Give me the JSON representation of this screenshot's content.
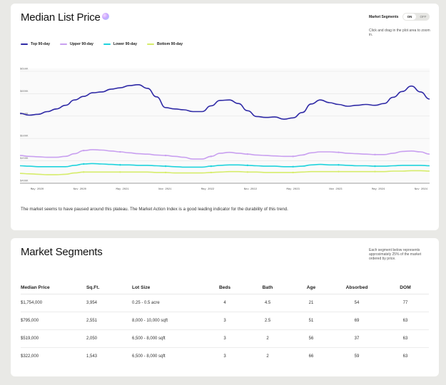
{
  "price": {
    "title": "Median List Price",
    "segments_label": "Market Segments",
    "toggle_on": "ON",
    "toggle_off": "OFF",
    "hint": "Click and drag in the plot area to zoom in.",
    "legend": [
      {
        "label": "Top 90-day",
        "color": "#2f2aa6"
      },
      {
        "label": "Upper 90-day",
        "color": "#c9a0f0"
      },
      {
        "label": "Lower 90-day",
        "color": "#1fd3dd"
      },
      {
        "label": "Bottom 90-day",
        "color": "#d6ec6a"
      }
    ],
    "note": "The market seems to have paused around this plateau. The Market Action Index is a good leading indicator for the durability of this trend."
  },
  "chart_data": {
    "type": "line",
    "ylim": [
      400,
      650
    ],
    "y_ticks": [
      "$650K",
      "$600K",
      "$550K",
      "$500K",
      "$450K",
      "$400K"
    ],
    "x_ticks": [
      "May 2020",
      "Nov 2020",
      "May 2021",
      "Nov 2021",
      "May 2022",
      "Nov 2022",
      "May 2023",
      "Nov 2023",
      "May 2024",
      "Nov 2024"
    ],
    "grid": true,
    "series": [
      {
        "name": "Top 90-day",
        "color": "#2f2aa6",
        "values": [
          556,
          552,
          554,
          560,
          566,
          574,
          586,
          594,
          602,
          604,
          610,
          613,
          618,
          620,
          612,
          593,
          569,
          566,
          564,
          560,
          560,
          573,
          585,
          586,
          578,
          562,
          549,
          547,
          548,
          543,
          546,
          558,
          577,
          586,
          580,
          576,
          572,
          574,
          576,
          574,
          578,
          592,
          605,
          617,
          604,
          588
        ]
      },
      {
        "name": "Upper 90-day",
        "color": "#c9a0f0",
        "values": [
          462,
          460,
          459,
          458,
          458,
          460,
          466,
          473,
          475,
          474,
          472,
          470,
          468,
          466,
          465,
          463,
          462,
          460,
          458,
          454,
          454,
          460,
          467,
          469,
          467,
          465,
          463,
          462,
          461,
          460,
          460,
          463,
          468,
          470,
          470,
          469,
          467,
          466,
          465,
          464,
          464,
          467,
          471,
          472,
          470,
          465
        ]
      },
      {
        "name": "Lower 90-day",
        "color": "#1fd3dd",
        "values": [
          439,
          438,
          437,
          437,
          437,
          437,
          440,
          443,
          444,
          443,
          442,
          441,
          441,
          440,
          440,
          439,
          438,
          437,
          436,
          436,
          436,
          438,
          440,
          441,
          441,
          440,
          439,
          438,
          438,
          437,
          437,
          438,
          441,
          442,
          441,
          441,
          440,
          439,
          439,
          438,
          438,
          439,
          440,
          440,
          440,
          439
        ]
      },
      {
        "name": "Bottom 90-day",
        "color": "#d6ec6a",
        "values": [
          422,
          421,
          420,
          419,
          419,
          420,
          423,
          425,
          425,
          425,
          425,
          425,
          425,
          425,
          425,
          424,
          424,
          423,
          423,
          423,
          423,
          424,
          425,
          426,
          426,
          425,
          425,
          424,
          424,
          424,
          424,
          425,
          426,
          426,
          426,
          426,
          426,
          426,
          426,
          426,
          426,
          427,
          427,
          428,
          428,
          427
        ]
      }
    ]
  },
  "segments": {
    "title": "Market Segments",
    "note": "Each segment below represents approximately 25% of the market ordered by price.",
    "columns": [
      "Median Price",
      "Sq.Ft.",
      "Lot Size",
      "Beds",
      "Bath",
      "Age",
      "Absorbed",
      "DOM"
    ],
    "rows": [
      [
        "$1,754,000",
        "3,954",
        "0.25 - 0.5 acre",
        "4",
        "4.5",
        "21",
        "54",
        "77"
      ],
      [
        "$795,000",
        "2,551",
        "8,000 - 10,000 sqft",
        "3",
        "2.5",
        "51",
        "69",
        "63"
      ],
      [
        "$519,000",
        "2,050",
        "6,500 - 8,000 sqft",
        "3",
        "2",
        "56",
        "37",
        "63"
      ],
      [
        "$322,000",
        "1,543",
        "6,500 - 8,000 sqft",
        "3",
        "2",
        "66",
        "59",
        "63"
      ]
    ]
  }
}
